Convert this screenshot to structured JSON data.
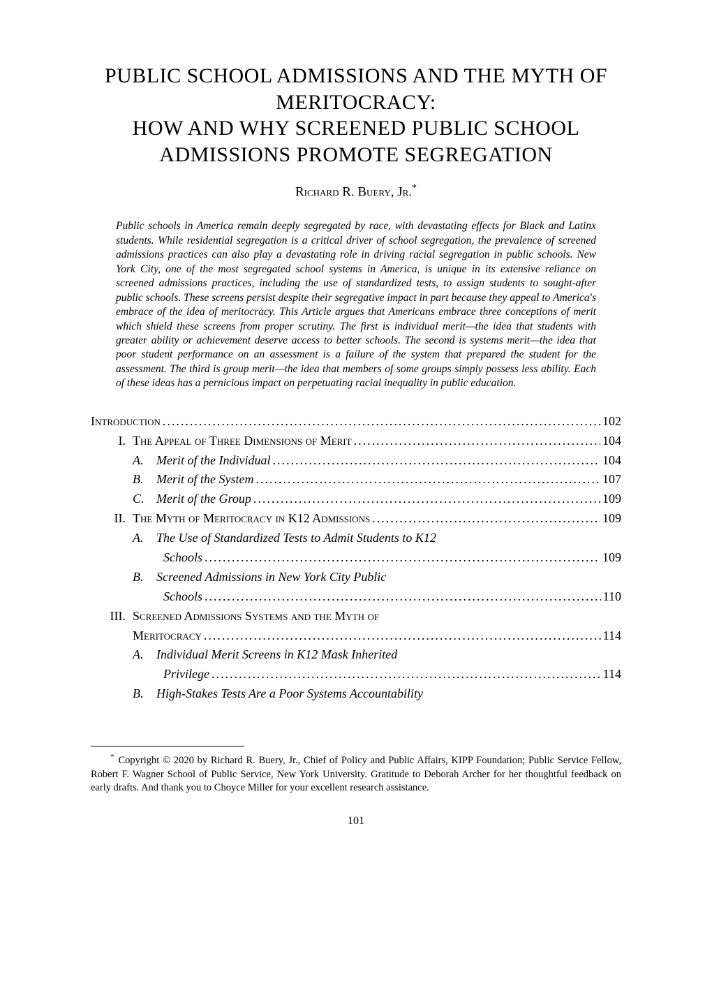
{
  "title": "PUBLIC SCHOOL ADMISSIONS AND THE MYTH OF MERITOCRACY:\nHOW AND WHY SCREENED PUBLIC SCHOOL ADMISSIONS PROMOTE SEGREGATION",
  "author_name": "Richard R. Buery, Jr.",
  "author_mark": "*",
  "abstract": "Public schools in America remain deeply segregated by race, with devastating effects for Black and Latinx students. While residential segregation is a critical driver of school segregation, the prevalence of screened admissions practices can also play a devastating role in driving racial segregation in public schools. New York City, one of the most segregated school systems in America, is unique in its extensive reliance on screened admissions practices, including the use of standardized tests, to assign students to sought-after public schools. These screens persist despite their segregative impact in part because they appeal to America's embrace of the idea of meritocracy. This Article argues that Americans embrace three conceptions of merit which shield these screens from proper scrutiny. The first is individual merit—the idea that students with greater ability or achievement deserve access to better schools. The second is systems merit—the idea that poor student performance on an assessment is a failure of the system that prepared the student for the assessment. The third is group merit—the idea that members of some groups simply possess less ability. Each of these ideas has a pernicious impact on perpetuating racial inequality in public education.",
  "toc": [
    {
      "level": 0,
      "num": "",
      "label": "Introduction",
      "style": "smallcaps",
      "page": "102"
    },
    {
      "level": 1,
      "num": "I.",
      "label": "The Appeal of Three Dimensions of Merit",
      "style": "smallcaps",
      "page": "104"
    },
    {
      "level": 2,
      "num": "A.",
      "label": "Merit of the Individual",
      "style": "italic",
      "page": "104"
    },
    {
      "level": 2,
      "num": "B.",
      "label": "Merit of the System",
      "style": "italic",
      "page": "107"
    },
    {
      "level": 2,
      "num": "C.",
      "label": "Merit of the Group",
      "style": "italic",
      "page": "109"
    },
    {
      "level": 1,
      "num": "II.",
      "label": "The Myth of Meritocracy in K12 Admissions",
      "style": "smallcaps",
      "page": "109"
    },
    {
      "level": 2,
      "num": "A.",
      "label": "The Use of Standardized Tests to Admit Students to K12",
      "label2": "Schools",
      "style": "italic",
      "page": "109"
    },
    {
      "level": 2,
      "num": "B.",
      "label": "Screened Admissions in New York City Public",
      "label2": "Schools",
      "style": "italic",
      "page": "110"
    },
    {
      "level": 1,
      "num": "III.",
      "label": "Screened Admissions Systems and the Myth of",
      "label2": "Meritocracy",
      "style": "smallcaps",
      "page": "114"
    },
    {
      "level": 2,
      "num": "A.",
      "label": "Individual Merit Screens in K12 Mask Inherited",
      "label2": "Privilege",
      "style": "italic",
      "page": "114"
    },
    {
      "level": 2,
      "num": "B.",
      "label": "High-Stakes Tests Are a Poor Systems Accountability",
      "style": "italic",
      "page": ""
    }
  ],
  "footnote_mark": "*",
  "footnote": "Copyright © 2020 by Richard R. Buery, Jr., Chief of Policy and Public Affairs, KIPP Foundation; Public Service Fellow, Robert F. Wagner School of Public Service, New York University. Gratitude to Deborah Archer for her thoughtful feedback on early drafts. And thank you to Choyce Miller for your excellent research assistance.",
  "page_number": "101"
}
